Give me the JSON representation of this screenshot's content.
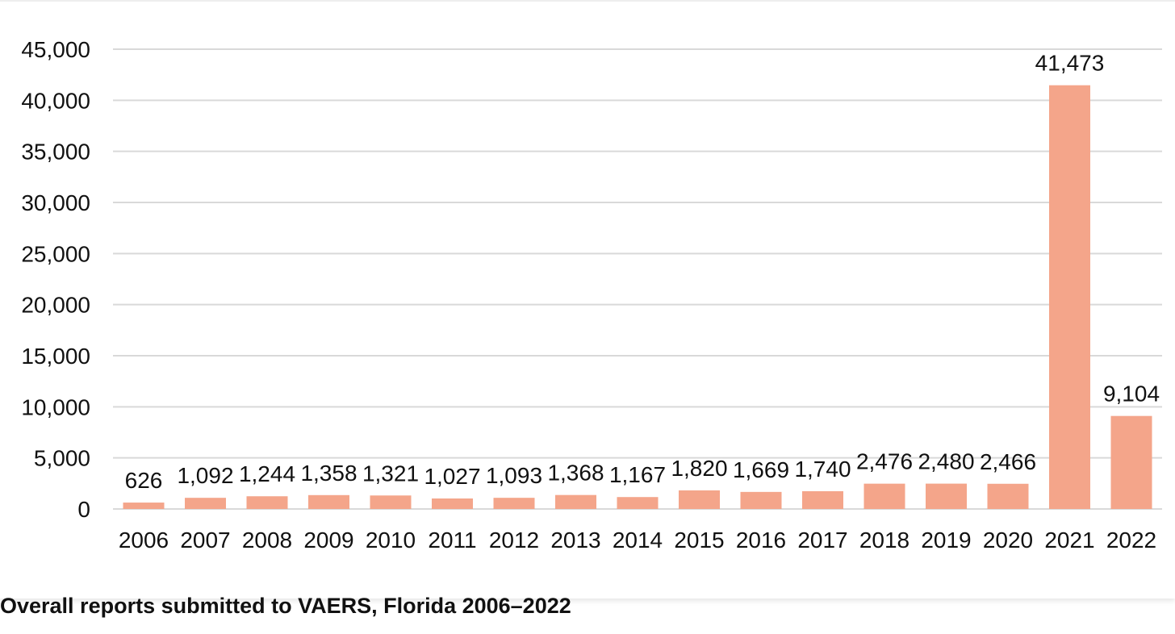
{
  "caption": "Overall reports submitted to VAERS, Florida 2006–2022",
  "colors": {
    "bar": "#f4a58a",
    "grid": "#d9d9d9",
    "text": "#111111"
  },
  "chart_data": {
    "type": "bar",
    "title": "",
    "xlabel": "",
    "ylabel": "",
    "categories": [
      "2006",
      "2007",
      "2008",
      "2009",
      "2010",
      "2011",
      "2012",
      "2013",
      "2014",
      "2015",
      "2016",
      "2017",
      "2018",
      "2019",
      "2020",
      "2021",
      "2022"
    ],
    "values": [
      626,
      1092,
      1244,
      1358,
      1321,
      1027,
      1093,
      1368,
      1167,
      1820,
      1669,
      1740,
      2476,
      2480,
      2466,
      41473,
      9104
    ],
    "data_labels": [
      "626",
      "1,092",
      "1,244",
      "1,358",
      "1,321",
      "1,027",
      "1,093",
      "1,368",
      "1,167",
      "1,820",
      "1,669",
      "1,740",
      "2,476",
      "2,480",
      "2,466",
      "41,473",
      "9,104"
    ],
    "yticks": [
      0,
      5000,
      10000,
      15000,
      20000,
      25000,
      30000,
      35000,
      40000,
      45000
    ],
    "ytick_labels": [
      "0",
      "5,000",
      "10,000",
      "15,000",
      "20,000",
      "25,000",
      "30,000",
      "35,000",
      "40,000",
      "45,000"
    ],
    "ylim": [
      0,
      45000
    ],
    "grid": true,
    "legend": "none"
  }
}
